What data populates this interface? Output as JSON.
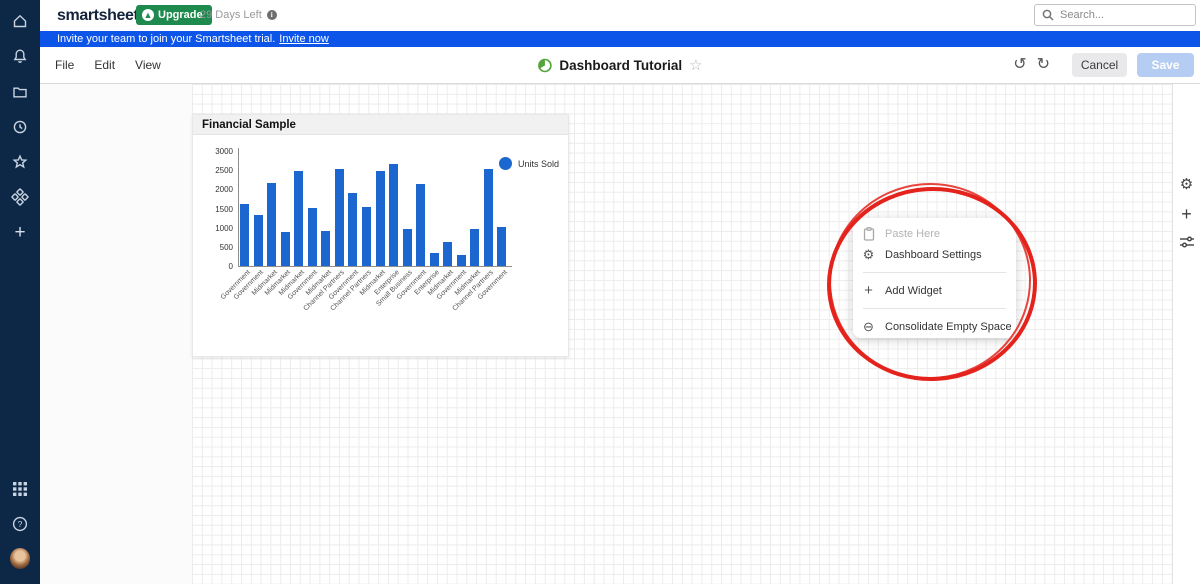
{
  "topbar": {
    "logo": "smartsheet",
    "upgrade_label": "Upgrade",
    "trial_text": "29 Days Left",
    "search_placeholder": "Search..."
  },
  "banner": {
    "message": "Invite your team to join your Smartsheet trial.",
    "link_label": "Invite now"
  },
  "toolbar": {
    "menus": {
      "file": "File",
      "edit": "Edit",
      "view": "View"
    },
    "title": "Dashboard Tutorial",
    "cancel_label": "Cancel",
    "save_label": "Save"
  },
  "sidebar": {
    "icons": [
      "home-icon",
      "bell-icon",
      "folder-icon",
      "recents-clock-icon",
      "favorites-star-icon",
      "solution-center-icon",
      "create-plus-icon",
      "app-launcher-grid-icon",
      "help-icon",
      "account-avatar"
    ]
  },
  "right_rail": {
    "icons": [
      "settings-gear-icon",
      "add-widget-plus-icon",
      "filter-sliders-icon"
    ]
  },
  "widget": {
    "title": "Financial Sample"
  },
  "chart_data": {
    "type": "bar",
    "title": "Financial Sample",
    "categories": [
      "Government",
      "Government",
      "Midmarket",
      "Midmarket",
      "Midmarket",
      "Government",
      "Midmarket",
      "Channel Partners",
      "Government",
      "Channel Partners",
      "Midmarket",
      "Enterprise",
      "Small Business",
      "Government",
      "Enterprise",
      "Midmarket",
      "Government",
      "Midmarket",
      "Channel Partners",
      "Government"
    ],
    "series": [
      {
        "name": "Units Sold",
        "values": [
          1618,
          1321,
          2178,
          888,
          2470,
          1513,
          921,
          2518,
          1899,
          1545,
          2470,
          2666,
          958,
          2146,
          345,
          615,
          292,
          974,
          2518,
          1006
        ]
      }
    ],
    "ylim": [
      0,
      3000
    ],
    "yticks": [
      0,
      500,
      1000,
      1500,
      2000,
      2500,
      3000
    ],
    "bar_color": "#1b66cf",
    "legend_position": "right",
    "grid": false
  },
  "context_menu": {
    "items": [
      {
        "label": "Paste Here",
        "icon": "clipboard-icon",
        "disabled": true
      },
      {
        "label": "Dashboard Settings",
        "icon": "gear-icon",
        "disabled": false
      },
      {
        "label": "Add Widget",
        "icon": "plus-icon",
        "disabled": false
      },
      {
        "label": "Consolidate Empty Space",
        "icon": "minus-circle-icon",
        "disabled": false
      }
    ]
  },
  "annotation": {
    "shape": "hand-drawn red ellipse around context menu",
    "color": "#e3231c"
  },
  "colors": {
    "sidebar_navy": "#0d2847",
    "banner_blue": "#0d55e8",
    "upgrade_green": "#1e8a4e",
    "bar_blue": "#1b66cf",
    "annotation_red": "#e3231c",
    "save_disabled_blue": "#b6cdf3"
  }
}
